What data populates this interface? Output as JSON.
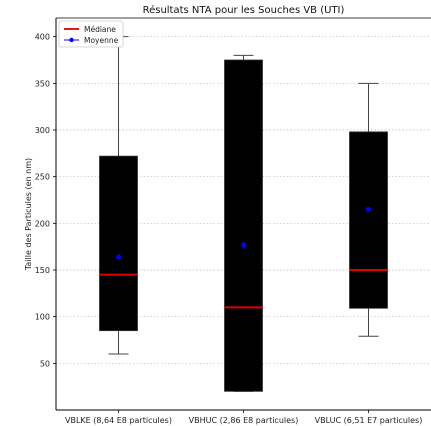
{
  "chart_data": {
    "type": "box",
    "title": "Résultats NTA pour les Souches VB (UTI)",
    "xlabel": "",
    "ylabel": "Taille des Particules (en nm)",
    "ylim": [
      0,
      420
    ],
    "yticks": [
      50,
      100,
      150,
      200,
      250,
      300,
      350,
      400
    ],
    "grid": {
      "y": true,
      "x": false,
      "style": "dotted"
    },
    "legend": {
      "placement": "top-left",
      "entries": [
        {
          "label": "Médiane",
          "color": "#e00000",
          "marker": "line"
        },
        {
          "label": "Moyenne",
          "color": "#0000ff",
          "marker": "dot-line"
        }
      ]
    },
    "categories": [
      "VBLKE (8,64 E8 particules)",
      "VBHUC (2,86 E8 particules)",
      "VBLUC (6,51 E7 particules)"
    ],
    "boxes": [
      {
        "min": 60,
        "q1": 85,
        "median": 145,
        "q3": 272,
        "max": 400,
        "mean": 164
      },
      {
        "min": 20,
        "q1": 20,
        "median": 110,
        "q3": 375,
        "max": 380,
        "mean": 177
      },
      {
        "min": 79,
        "q1": 109,
        "median": 150,
        "q3": 298,
        "max": 350,
        "mean": 215
      }
    ],
    "colors": {
      "box": "#000000",
      "whisker": "#444444",
      "median": "#e00000",
      "mean": "#0000ff",
      "grid": "#bbbbbb",
      "axis": "#000000"
    }
  }
}
